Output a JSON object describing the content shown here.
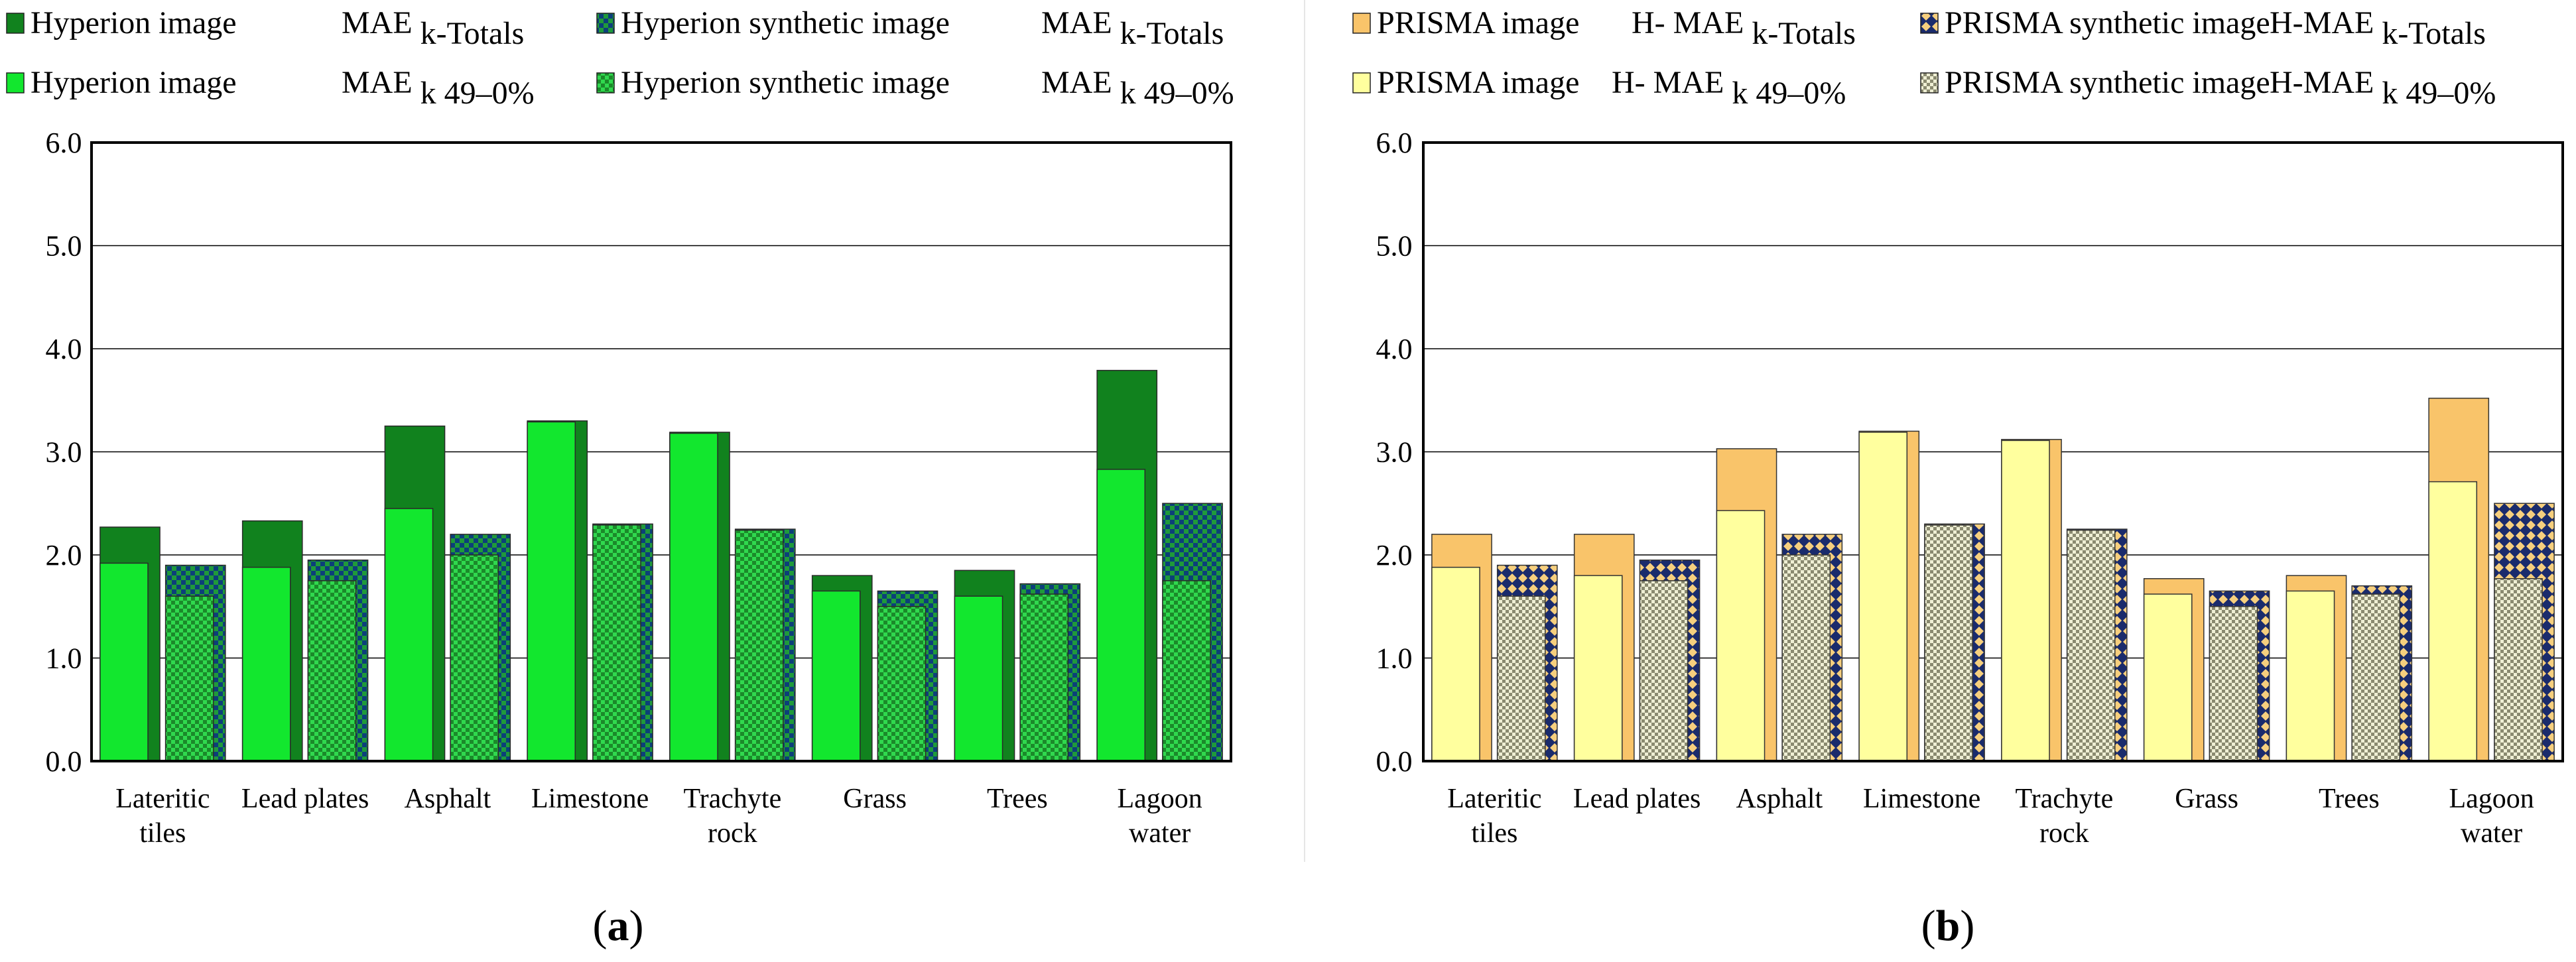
{
  "colors": {
    "hyp_total_image": "#11821e",
    "hyp_sub_image": "#12e72e",
    "hyp_synth_fg": "#0c3f7a",
    "hyp_synth_bg": "#1f9a3a",
    "hyp_sub_synth_fg": "#1b8a2a",
    "hyp_sub_synth_bg": "#30d84e",
    "pri_total_image": "#f9c46a",
    "pri_sub_image": "#ffff9e",
    "pri_synth_fg": "#1a2b6c",
    "pri_synth_bg": "#f6cf7e",
    "pri_sub_synth_fg": "#8a8a70",
    "pri_sub_synth_bg": "#efefd4"
  },
  "panels": {
    "a": {
      "label_pre": "(",
      "label": "a",
      "label_post": ")"
    },
    "b": {
      "label_pre": "(",
      "label": "b",
      "label_post": ")"
    }
  },
  "chart_data": [
    {
      "type": "bar",
      "panel": "a",
      "categories": [
        [
          "Lateritic",
          "tiles"
        ],
        [
          "Lead plates"
        ],
        [
          "Asphalt"
        ],
        [
          "Limestone"
        ],
        [
          "Trachyte",
          "rock"
        ],
        [
          "Grass"
        ],
        [
          "Trees"
        ],
        [
          "Lagoon",
          "water"
        ]
      ],
      "ylim": [
        0,
        6
      ],
      "yticks": [
        "0.0",
        "1.0",
        "2.0",
        "3.0",
        "4.0",
        "5.0",
        "6.0"
      ],
      "grid": true,
      "legend": [
        {
          "name": "Hyperion image",
          "metric": "MAE",
          "subscript": "k-Totals"
        },
        {
          "name": "Hyperion synthetic image",
          "metric": "MAE",
          "subscript": "k-Totals"
        },
        {
          "name": "Hyperion image",
          "metric": "MAE",
          "subscript": "k 49–0%"
        },
        {
          "name": "Hyperion synthetic image",
          "metric": "MAE",
          "subscript": "k 49–0%"
        }
      ],
      "series": [
        {
          "name": "Hyperion image MAE k-Totals",
          "values": [
            2.27,
            2.33,
            3.25,
            3.3,
            3.19,
            1.8,
            1.85,
            3.79
          ]
        },
        {
          "name": "Hyperion image MAE k 49–0%",
          "values": [
            1.92,
            1.88,
            2.45,
            3.29,
            3.18,
            1.65,
            1.6,
            2.83
          ]
        },
        {
          "name": "Hyperion synthetic image MAE k-Totals",
          "values": [
            1.9,
            1.95,
            2.2,
            2.3,
            2.25,
            1.65,
            1.72,
            2.5
          ]
        },
        {
          "name": "Hyperion synthetic image MAE k 49–0%",
          "values": [
            1.6,
            1.75,
            2.0,
            2.29,
            2.24,
            1.5,
            1.62,
            1.75
          ]
        }
      ]
    },
    {
      "type": "bar",
      "panel": "b",
      "categories": [
        [
          "Lateritic",
          "tiles"
        ],
        [
          "Lead plates"
        ],
        [
          "Asphalt"
        ],
        [
          "Limestone"
        ],
        [
          "Trachyte",
          "rock"
        ],
        [
          "Grass"
        ],
        [
          "Trees"
        ],
        [
          "Lagoon",
          "water"
        ]
      ],
      "ylim": [
        0,
        6
      ],
      "yticks": [
        "0.0",
        "1.0",
        "2.0",
        "3.0",
        "4.0",
        "5.0",
        "6.0"
      ],
      "grid": true,
      "legend": [
        {
          "name": "PRISMA image",
          "metric": "H- MAE",
          "subscript": "k-Totals"
        },
        {
          "name": "PRISMA synthetic image",
          "metric": "H-MAE",
          "subscript": "k-Totals"
        },
        {
          "name": "PRISMA image",
          "metric": "H- MAE",
          "subscript": "k 49–0%"
        },
        {
          "name": "PRISMA synthetic image",
          "metric": "H-MAE",
          "subscript": "k 49–0%"
        }
      ],
      "series": [
        {
          "name": "PRISMA image H-MAE k-Totals",
          "values": [
            2.2,
            2.2,
            3.03,
            3.2,
            3.12,
            1.77,
            1.8,
            3.52
          ]
        },
        {
          "name": "PRISMA image H-MAE k 49–0%",
          "values": [
            1.88,
            1.8,
            2.43,
            3.19,
            3.11,
            1.62,
            1.65,
            2.71
          ]
        },
        {
          "name": "PRISMA synthetic image H-MAE k-Totals",
          "values": [
            1.9,
            1.95,
            2.2,
            2.3,
            2.25,
            1.65,
            1.7,
            2.5
          ]
        },
        {
          "name": "PRISMA synthetic image H-MAE k 49–0%",
          "values": [
            1.6,
            1.75,
            2.0,
            2.29,
            2.24,
            1.5,
            1.62,
            1.77
          ]
        }
      ]
    }
  ]
}
